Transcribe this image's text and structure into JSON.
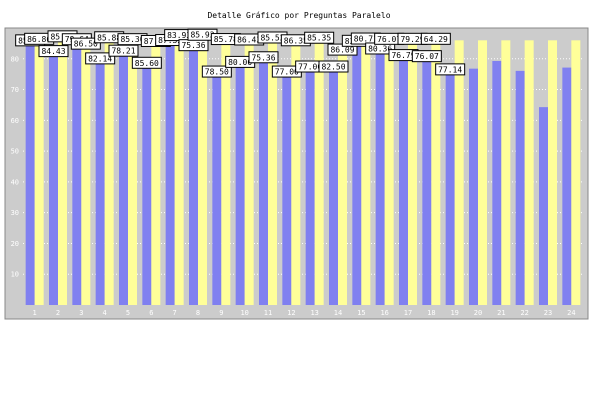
{
  "chart_data": {
    "type": "bar",
    "title": "Detalle Gráfico por Preguntas Paralelo",
    "xlabel": "",
    "ylabel": "",
    "categories": [
      "1",
      "2",
      "3",
      "4",
      "5",
      "6",
      "7",
      "8",
      "9",
      "10",
      "11",
      "12",
      "13",
      "14",
      "15",
      "16",
      "17",
      "18",
      "19",
      "20",
      "21",
      "22",
      "23",
      "24"
    ],
    "series": [
      {
        "values": [
          85.5,
          82.0,
          85.86,
          79.64,
          82.14,
          78.21,
          85.6,
          83.93,
          75.36,
          78.5,
          80.0,
          75.36,
          77.0,
          77.0,
          85.35,
          82.86,
          80.71,
          80.36,
          76.07,
          76.79,
          79.29,
          76.07,
          64.29,
          77.14
        ]
      },
      {
        "values": [
          86.0,
          86.8,
          84.43,
          86.5,
          85.88,
          85.3,
          87.21,
          87.32,
          85.92,
          85.78,
          86.43,
          85.52,
          86.35,
          82.5,
          86.09,
          86.0,
          86.0,
          86.0,
          86.0,
          86.0,
          86.0,
          86.0,
          86.0,
          86.0
        ]
      }
    ],
    "data_labels": [
      "85.50",
      "86.80",
      "84.43",
      "85.86",
      "79.64",
      "86.50",
      "82.14",
      "85.88",
      "78.21",
      "85.30",
      "85.60",
      "87.21",
      "87.32",
      "83.93",
      "75.36",
      "85.92",
      "78.50",
      "85.78",
      "80.00",
      "86.43",
      "75.36",
      "85.52",
      "77.00",
      "86.35",
      "77.00",
      "85.35",
      "82.50",
      "86.09",
      "82.86",
      "80.71",
      "80.36",
      "76.07",
      "76.79",
      "79.29",
      "76.07",
      "64.29",
      "77.14"
    ],
    "ylim": [
      0,
      90
    ],
    "yticks": [
      10,
      20,
      30,
      40,
      50,
      60,
      70,
      80
    ],
    "grid": true,
    "legend": "none",
    "colors": {
      "series1": "#8080f0",
      "series2": "#ffff99",
      "plot_bg": "#cccccc",
      "tick_text": "#ffffff",
      "grid": "#ffffff"
    }
  }
}
